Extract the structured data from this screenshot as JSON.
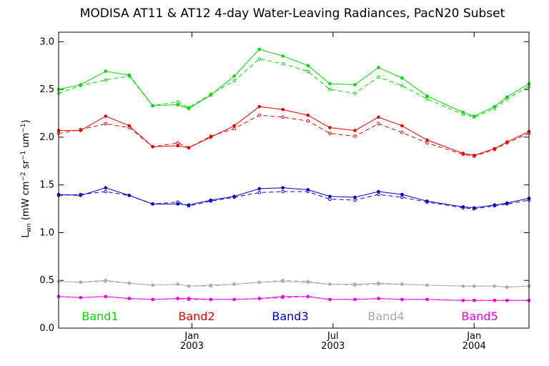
{
  "chart_data": {
    "type": "line",
    "title": "MODISA AT11 & AT12 4-day Water-Leaving Radiances, PacN20 Subset",
    "ylabel": {
      "main": "L",
      "sub": "wn",
      "units_open": " (mW cm",
      "exp1": "−2",
      "mid1": " sr",
      "exp2": "−1",
      "mid2": " um",
      "exp3": "−1",
      "units_close": ")"
    },
    "xlim": [
      0,
      30
    ],
    "ylim": [
      0.0,
      3.1
    ],
    "yticks": [
      "0.0",
      "0.5",
      "1.0",
      "1.5",
      "2.0",
      "2.5",
      "3.0"
    ],
    "ytick_values": [
      0.0,
      0.5,
      1.0,
      1.5,
      2.0,
      2.5,
      3.0
    ],
    "xticks": [
      {
        "x": 8.5,
        "label": "Jan",
        "year": "2003"
      },
      {
        "x": 17.5,
        "label": "Jul",
        "year": "2003"
      },
      {
        "x": 26.5,
        "label": "Jan",
        "year": "2004"
      }
    ],
    "x": [
      0,
      1.4,
      3,
      4.5,
      6,
      7.6,
      8.3,
      9.7,
      11.2,
      12.8,
      14.3,
      15.9,
      17.3,
      18.9,
      20.4,
      21.9,
      23.5,
      25.8,
      26.5,
      27.8,
      28.6,
      30
    ],
    "series": [
      {
        "name": "Band1",
        "color": "#00dd00",
        "solid": [
          2.5,
          2.55,
          2.69,
          2.65,
          2.33,
          2.34,
          2.3,
          2.44,
          2.64,
          2.92,
          2.85,
          2.75,
          2.56,
          2.55,
          2.73,
          2.62,
          2.43,
          2.26,
          2.22,
          2.32,
          2.42,
          2.56
        ],
        "dashed": [
          2.46,
          2.54,
          2.6,
          2.64,
          2.33,
          2.37,
          2.31,
          2.45,
          2.59,
          2.82,
          2.77,
          2.69,
          2.5,
          2.46,
          2.63,
          2.54,
          2.4,
          2.24,
          2.21,
          2.3,
          2.4,
          2.53
        ]
      },
      {
        "name": "Band2",
        "color": "#ee0000",
        "solid": [
          2.07,
          2.07,
          2.22,
          2.12,
          1.9,
          1.91,
          1.89,
          2.0,
          2.12,
          2.32,
          2.29,
          2.23,
          2.1,
          2.07,
          2.21,
          2.12,
          1.97,
          1.83,
          1.81,
          1.88,
          1.95,
          2.06
        ],
        "dashed": [
          2.04,
          2.08,
          2.14,
          2.1,
          1.9,
          1.94,
          1.89,
          2.01,
          2.09,
          2.23,
          2.21,
          2.17,
          2.04,
          2.01,
          2.14,
          2.05,
          1.94,
          1.82,
          1.8,
          1.87,
          1.94,
          2.04
        ]
      },
      {
        "name": "Band3",
        "color": "#0000cc",
        "solid": [
          1.4,
          1.39,
          1.47,
          1.39,
          1.3,
          1.3,
          1.29,
          1.34,
          1.38,
          1.46,
          1.47,
          1.45,
          1.38,
          1.37,
          1.43,
          1.4,
          1.33,
          1.27,
          1.26,
          1.29,
          1.31,
          1.36
        ],
        "dashed": [
          1.39,
          1.4,
          1.43,
          1.39,
          1.3,
          1.32,
          1.28,
          1.33,
          1.37,
          1.42,
          1.43,
          1.43,
          1.35,
          1.34,
          1.4,
          1.37,
          1.32,
          1.26,
          1.25,
          1.28,
          1.3,
          1.34
        ]
      },
      {
        "name": "Band4",
        "color": "#aaaaaa",
        "solid": [
          0.49,
          0.48,
          0.5,
          0.47,
          0.45,
          0.46,
          0.44,
          0.45,
          0.46,
          0.48,
          0.49,
          0.48,
          0.46,
          0.46,
          0.47,
          0.46,
          0.45,
          0.44,
          0.44,
          0.44,
          0.43,
          0.44
        ],
        "dashed": [
          0.49,
          0.48,
          0.49,
          0.47,
          0.45,
          0.46,
          0.44,
          0.44,
          0.46,
          0.48,
          0.5,
          0.49,
          0.46,
          0.45,
          0.46,
          0.46,
          0.45,
          0.44,
          0.44,
          0.44,
          0.43,
          0.44
        ]
      },
      {
        "name": "Band5",
        "color": "#ee00ee",
        "solid": [
          0.33,
          0.32,
          0.33,
          0.31,
          0.3,
          0.31,
          0.31,
          0.3,
          0.3,
          0.31,
          0.33,
          0.33,
          0.3,
          0.3,
          0.31,
          0.3,
          0.3,
          0.29,
          0.29,
          0.29,
          0.29,
          0.29
        ],
        "dashed": [
          0.33,
          0.32,
          0.33,
          0.31,
          0.3,
          0.31,
          0.3,
          0.3,
          0.3,
          0.31,
          0.32,
          0.33,
          0.3,
          0.3,
          0.31,
          0.3,
          0.3,
          0.29,
          0.29,
          0.29,
          0.29,
          0.29
        ]
      }
    ],
    "legend": {
      "placement": "bottom-inside",
      "entries": [
        "Band1",
        "Band2",
        "Band3",
        "Band4",
        "Band5"
      ]
    }
  }
}
